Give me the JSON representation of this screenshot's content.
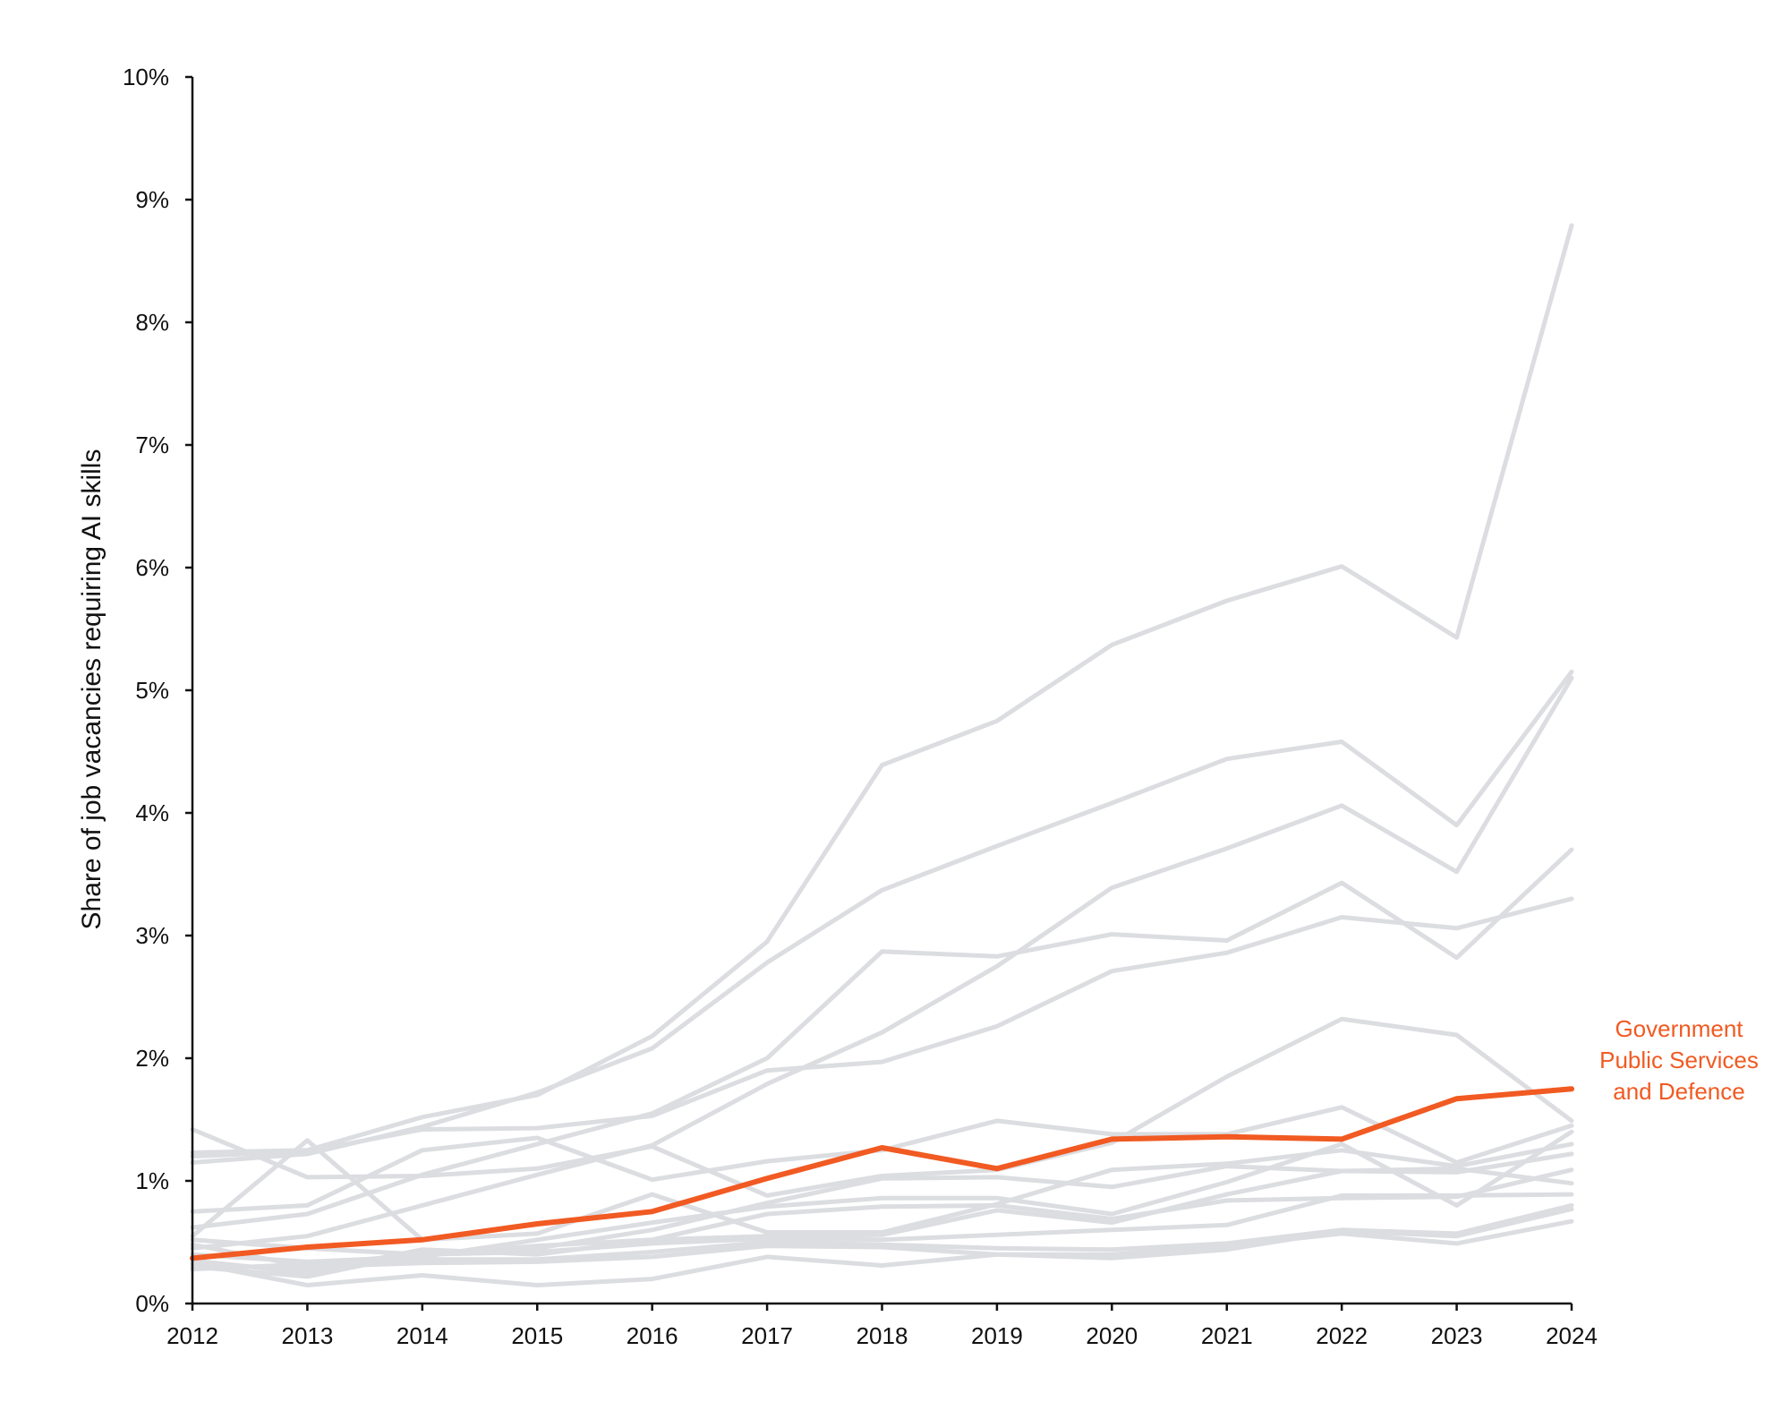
{
  "chart_data": {
    "type": "line",
    "title": "",
    "xlabel": "",
    "ylabel": "Share of job vacancies requiring AI skills",
    "x": [
      2012,
      2013,
      2014,
      2015,
      2016,
      2017,
      2018,
      2019,
      2020,
      2021,
      2022,
      2023,
      2024
    ],
    "y_ticks": [
      "0%",
      "1%",
      "2%",
      "3%",
      "4%",
      "5%",
      "6%",
      "7%",
      "8%",
      "9%",
      "10%"
    ],
    "ylim": [
      0,
      10
    ],
    "grid": false,
    "highlight_color": "#f15a22",
    "background_series_color": "#dcdde1",
    "highlight": {
      "name": "Government Public Services and Defence",
      "label_lines": [
        "Government",
        "Public Services",
        "and Defence"
      ],
      "values": [
        0.37,
        0.46,
        0.52,
        0.65,
        0.75,
        1.02,
        1.27,
        1.1,
        1.34,
        1.36,
        1.34,
        1.67,
        1.75
      ]
    },
    "series": [
      {
        "values": [
          1.23,
          1.25,
          1.52,
          1.7,
          2.18,
          2.95,
          4.39,
          4.75,
          5.37,
          5.73,
          6.01,
          5.43,
          8.79
        ]
      },
      {
        "values": [
          1.15,
          1.22,
          1.44,
          1.72,
          2.08,
          2.78,
          3.37,
          3.73,
          4.08,
          4.44,
          4.58,
          3.9,
          5.15
        ]
      },
      {
        "values": [
          0.62,
          0.73,
          1.05,
          1.3,
          1.55,
          2.0,
          2.87,
          2.83,
          3.01,
          2.96,
          3.43,
          2.82,
          3.7
        ]
      },
      {
        "values": [
          0.45,
          0.55,
          0.8,
          1.05,
          1.29,
          1.79,
          2.21,
          2.75,
          3.39,
          3.71,
          4.06,
          3.52,
          5.1
        ]
      },
      {
        "values": [
          1.2,
          1.24,
          1.42,
          1.43,
          1.53,
          1.9,
          1.97,
          2.26,
          2.71,
          2.86,
          3.15,
          3.06,
          3.3
        ]
      },
      {
        "values": [
          1.42,
          1.03,
          1.04,
          1.1,
          1.28,
          0.88,
          1.04,
          1.09,
          1.31,
          1.85,
          2.32,
          2.19,
          1.49
        ]
      },
      {
        "values": [
          0.75,
          0.8,
          1.25,
          1.35,
          1.01,
          1.16,
          1.25,
          1.49,
          1.38,
          1.38,
          1.6,
          1.15,
          1.45
        ]
      },
      {
        "values": [
          0.55,
          1.33,
          0.52,
          0.57,
          0.89,
          0.58,
          0.58,
          0.81,
          1.09,
          1.14,
          1.25,
          1.12,
          1.3
        ]
      },
      {
        "values": [
          0.3,
          0.22,
          0.41,
          0.45,
          0.6,
          0.82,
          1.02,
          1.03,
          0.95,
          1.12,
          1.08,
          1.07,
          1.22
        ]
      },
      {
        "values": [
          0.4,
          0.34,
          0.38,
          0.52,
          0.66,
          0.79,
          0.86,
          0.86,
          0.73,
          0.99,
          1.3,
          0.8,
          1.4
        ]
      },
      {
        "values": [
          0.35,
          0.25,
          0.44,
          0.4,
          0.52,
          0.73,
          0.79,
          0.8,
          0.69,
          0.84,
          0.86,
          0.87,
          1.09
        ]
      },
      {
        "values": [
          0.28,
          0.32,
          0.4,
          0.47,
          0.52,
          0.55,
          0.56,
          0.76,
          0.66,
          0.89,
          1.08,
          1.1,
          0.98
        ]
      },
      {
        "values": [
          0.52,
          0.45,
          0.4,
          0.42,
          0.49,
          0.53,
          0.52,
          0.56,
          0.6,
          0.64,
          0.88,
          0.88,
          0.89
        ]
      },
      {
        "values": [
          0.32,
          0.28,
          0.36,
          0.36,
          0.42,
          0.5,
          0.48,
          0.45,
          0.44,
          0.49,
          0.6,
          0.57,
          0.8
        ]
      },
      {
        "values": [
          0.48,
          0.3,
          0.33,
          0.34,
          0.38,
          0.47,
          0.46,
          0.4,
          0.4,
          0.47,
          0.57,
          0.49,
          0.67
        ]
      },
      {
        "values": [
          0.33,
          0.15,
          0.23,
          0.15,
          0.2,
          0.38,
          0.31,
          0.4,
          0.37,
          0.44,
          0.59,
          0.55,
          0.77
        ]
      }
    ]
  }
}
